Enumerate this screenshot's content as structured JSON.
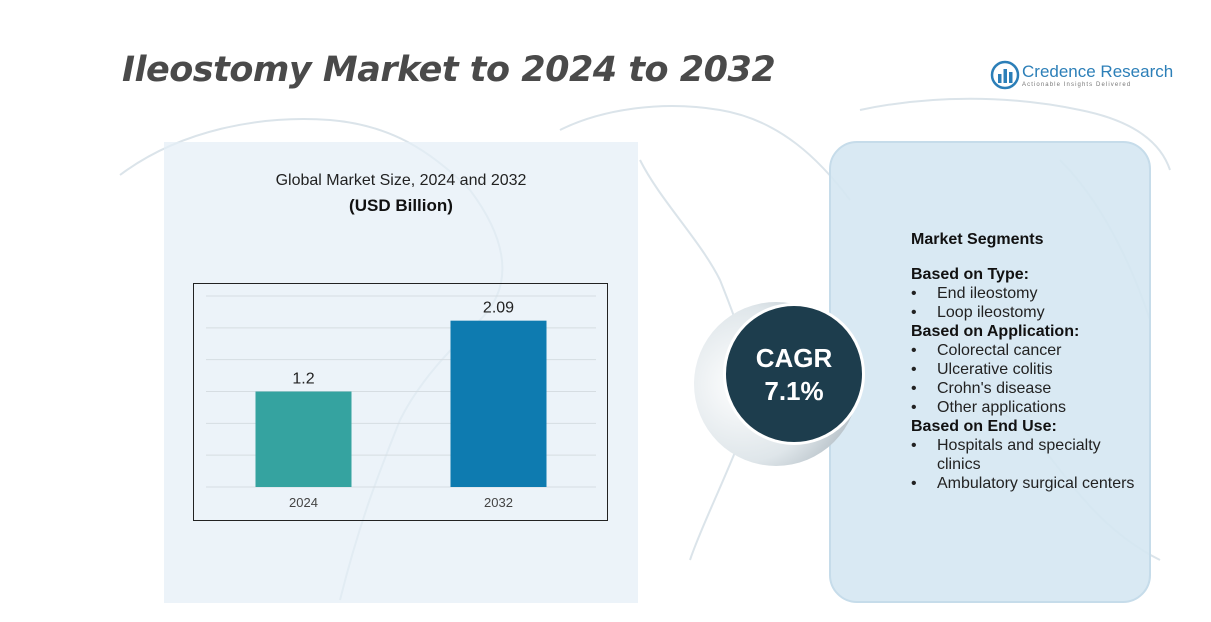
{
  "title": "Ileostomy Market to 2024 to 2032",
  "brand": {
    "name": "Credence Research",
    "tagline": "Actionable Insights Delivered",
    "color": "#2c7fb8"
  },
  "chart_panel": {
    "subtitle": "Global Market Size,  2024 and 2032",
    "unit": "(USD Billion)"
  },
  "chart_data": {
    "type": "bar",
    "categories": [
      "2024",
      "2032"
    ],
    "values": [
      1.2,
      2.09
    ],
    "data_labels": [
      "1.2",
      "2.09"
    ],
    "colors": [
      "#35a3a0",
      "#0e7bb0"
    ],
    "ylim": [
      0,
      2.4
    ],
    "grid": true,
    "legend": "none"
  },
  "cagr": {
    "label": "CAGR",
    "value": "7.1%",
    "color": "#1d3d4d"
  },
  "segments": {
    "header": "Market Segments",
    "bullet": "•",
    "groups": [
      {
        "title": "Based on Type:",
        "items": [
          "End ileostomy",
          "Loop ileostomy"
        ]
      },
      {
        "title": "Based on Application:",
        "items": [
          "Colorectal cancer",
          "Ulcerative colitis",
          "Crohn's disease",
          "Other applications"
        ]
      },
      {
        "title": "Based on End Use:",
        "items": [
          "Hospitals and specialty clinics",
          "Ambulatory surgical centers"
        ]
      }
    ]
  }
}
